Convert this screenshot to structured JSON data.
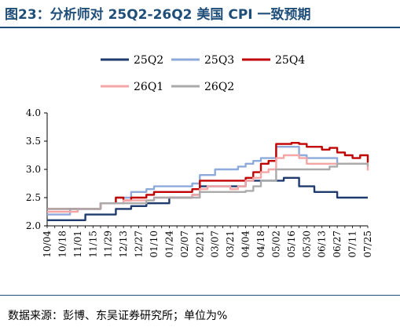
{
  "title": "图23：分析师对 25Q2-26Q2 美国 CPI 一致预期",
  "source": "数据来源：彭博、东吴证券研究所；单位为%",
  "chart_data": {
    "type": "line",
    "ylim": [
      2.0,
      4.0
    ],
    "yticks": [
      "2.0",
      "2.5",
      "3.0",
      "3.5",
      "4.0"
    ],
    "grid": false,
    "legend_position": "top",
    "x": [
      "10/04",
      "10/11",
      "10/18",
      "10/25",
      "11/01",
      "11/08",
      "11/15",
      "11/22",
      "11/29",
      "12/06",
      "12/13",
      "12/20",
      "12/27",
      "01/03",
      "01/10",
      "01/17",
      "01/24",
      "01/31",
      "02/07",
      "02/14",
      "02/21",
      "02/28",
      "03/07",
      "03/14",
      "03/21",
      "03/28",
      "04/04",
      "04/11",
      "04/18",
      "04/25",
      "05/02",
      "05/09",
      "05/16",
      "05/23",
      "05/30",
      "06/06",
      "06/13",
      "06/20",
      "06/27",
      "07/04",
      "07/11",
      "07/18",
      "07/25"
    ],
    "x_tick_labels": [
      "10/04",
      "10/18",
      "11/01",
      "11/15",
      "11/29",
      "12/13",
      "12/27",
      "01/10",
      "01/24",
      "02/07",
      "02/21",
      "03/07",
      "03/21",
      "04/04",
      "04/18",
      "05/02",
      "05/16",
      "05/30",
      "06/13",
      "06/27",
      "07/11",
      "07/25"
    ],
    "series": [
      {
        "name": "25Q2",
        "color": "#1f3a6e",
        "values": [
          2.1,
          2.1,
          2.1,
          2.1,
          2.1,
          2.2,
          2.2,
          2.2,
          2.2,
          2.3,
          2.3,
          2.35,
          2.35,
          2.4,
          2.4,
          2.4,
          2.5,
          2.5,
          2.5,
          2.55,
          2.7,
          2.7,
          2.7,
          2.7,
          2.7,
          2.7,
          2.8,
          2.8,
          2.8,
          2.8,
          2.8,
          2.85,
          2.85,
          2.7,
          2.7,
          2.6,
          2.6,
          2.6,
          2.5,
          2.5,
          2.5,
          2.5,
          2.5
        ]
      },
      {
        "name": "25Q3",
        "color": "#8eaadb",
        "values": [
          2.2,
          2.2,
          2.2,
          2.3,
          2.3,
          2.3,
          2.3,
          2.4,
          2.4,
          2.5,
          2.5,
          2.6,
          2.6,
          2.65,
          2.7,
          2.7,
          2.7,
          2.7,
          2.7,
          2.75,
          2.9,
          2.9,
          3.0,
          3.0,
          3.0,
          3.05,
          3.1,
          3.15,
          3.2,
          3.2,
          3.4,
          3.4,
          3.4,
          3.25,
          3.2,
          3.2,
          3.2,
          3.2,
          3.1,
          3.1,
          3.1,
          3.1,
          3.1
        ]
      },
      {
        "name": "25Q4",
        "color": "#c00000",
        "values": [
          2.3,
          2.3,
          2.3,
          2.3,
          2.3,
          2.3,
          2.3,
          2.4,
          2.4,
          2.5,
          2.45,
          2.5,
          2.5,
          2.55,
          2.6,
          2.6,
          2.6,
          2.6,
          2.6,
          2.65,
          2.8,
          2.8,
          2.8,
          2.8,
          2.8,
          2.8,
          2.85,
          2.95,
          3.1,
          3.15,
          3.45,
          3.45,
          3.47,
          3.45,
          3.4,
          3.4,
          3.35,
          3.38,
          3.3,
          3.25,
          3.2,
          3.25,
          3.12
        ]
      },
      {
        "name": "26Q1",
        "color": "#f4a6a6",
        "values": [
          2.25,
          2.25,
          2.25,
          2.25,
          2.3,
          2.3,
          2.3,
          2.4,
          2.4,
          2.4,
          2.45,
          2.45,
          2.45,
          2.45,
          2.5,
          2.5,
          2.5,
          2.5,
          2.5,
          2.55,
          2.65,
          2.7,
          2.7,
          2.7,
          2.65,
          2.7,
          2.8,
          2.85,
          2.95,
          3.0,
          3.2,
          3.25,
          3.25,
          3.2,
          3.1,
          3.1,
          3.1,
          3.1,
          3.1,
          3.1,
          3.1,
          3.1,
          2.98
        ]
      },
      {
        "name": "26Q2",
        "color": "#aaaaaa",
        "values": [
          2.3,
          2.3,
          2.3,
          2.3,
          2.3,
          2.3,
          2.3,
          2.4,
          2.4,
          2.4,
          2.4,
          2.4,
          2.4,
          2.45,
          2.5,
          2.5,
          2.5,
          2.5,
          2.5,
          2.5,
          2.6,
          2.6,
          2.6,
          2.6,
          2.6,
          2.6,
          2.62,
          2.7,
          2.8,
          2.8,
          3.0,
          3.0,
          3.0,
          3.0,
          3.0,
          3.0,
          3.0,
          3.05,
          3.1,
          3.1,
          3.1,
          3.1,
          3.05
        ]
      }
    ]
  }
}
